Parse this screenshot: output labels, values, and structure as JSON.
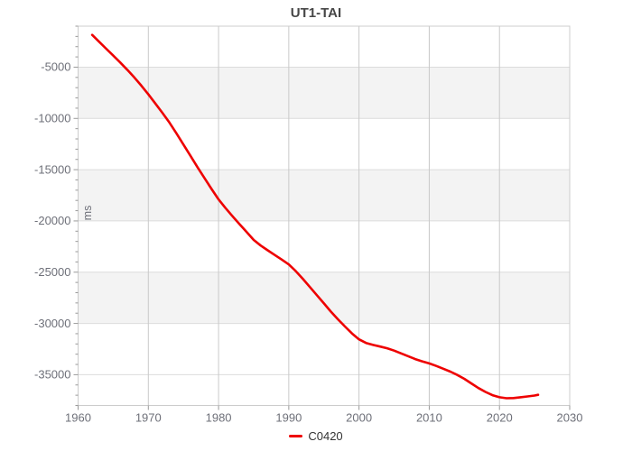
{
  "figure": {
    "title": "UT1-TAI",
    "y_axis_name": "ms",
    "legend": {
      "label": "C0420",
      "color": "#ee0000"
    }
  },
  "chart_data": {
    "type": "line",
    "title": "UT1-TAI",
    "xlabel": "",
    "ylabel": "ms",
    "legend_position": "bottom",
    "grid": true,
    "xlim": [
      1960,
      2030
    ],
    "ylim": [
      -38000,
      -1000
    ],
    "x_ticks": [
      1960,
      1970,
      1980,
      1990,
      2000,
      2010,
      2020,
      2030
    ],
    "y_ticks": [
      -5000,
      -10000,
      -15000,
      -20000,
      -25000,
      -30000,
      -35000
    ],
    "y_minor_step": 1000,
    "split_area_bands": [
      [
        -5000,
        -10000
      ],
      [
        -15000,
        -20000
      ],
      [
        -25000,
        -30000
      ]
    ],
    "style": {
      "band_color": "#f3f3f3",
      "grid_h_color": "#dcdcdc",
      "grid_v_color": "#c9c9c9",
      "axis_color": "#cccccc",
      "tick_color": "#999999",
      "label_color": "#6e7079"
    },
    "series": [
      {
        "name": "C0420",
        "color": "#ee0000",
        "x": [
          1962,
          1963,
          1964,
          1965,
          1966,
          1967,
          1968,
          1969,
          1970,
          1971,
          1972,
          1973,
          1974,
          1975,
          1976,
          1977,
          1978,
          1979,
          1980,
          1981,
          1982,
          1983,
          1984,
          1985,
          1986,
          1987,
          1988,
          1989,
          1990,
          1991,
          1992,
          1993,
          1994,
          1995,
          1996,
          1997,
          1998,
          1999,
          2000,
          2001,
          2002,
          2003,
          2004,
          2005,
          2006,
          2007,
          2008,
          2009,
          2010,
          2011,
          2012,
          2013,
          2014,
          2015,
          2016,
          2017,
          2018,
          2019,
          2020,
          2021,
          2022,
          2023,
          2024,
          2025,
          2025.5
        ],
        "y": [
          -1850,
          -2520,
          -3200,
          -3870,
          -4550,
          -5250,
          -6000,
          -6800,
          -7650,
          -8550,
          -9450,
          -10400,
          -11450,
          -12550,
          -13650,
          -14750,
          -15820,
          -16880,
          -17900,
          -18750,
          -19550,
          -20320,
          -21080,
          -21850,
          -22400,
          -22870,
          -23320,
          -23770,
          -24250,
          -24900,
          -25650,
          -26450,
          -27250,
          -28050,
          -28850,
          -29600,
          -30300,
          -30980,
          -31550,
          -31900,
          -32100,
          -32250,
          -32420,
          -32650,
          -32920,
          -33200,
          -33480,
          -33700,
          -33900,
          -34150,
          -34420,
          -34700,
          -35030,
          -35400,
          -35850,
          -36300,
          -36680,
          -37000,
          -37200,
          -37300,
          -37280,
          -37200,
          -37120,
          -37030,
          -36960
        ]
      }
    ]
  }
}
